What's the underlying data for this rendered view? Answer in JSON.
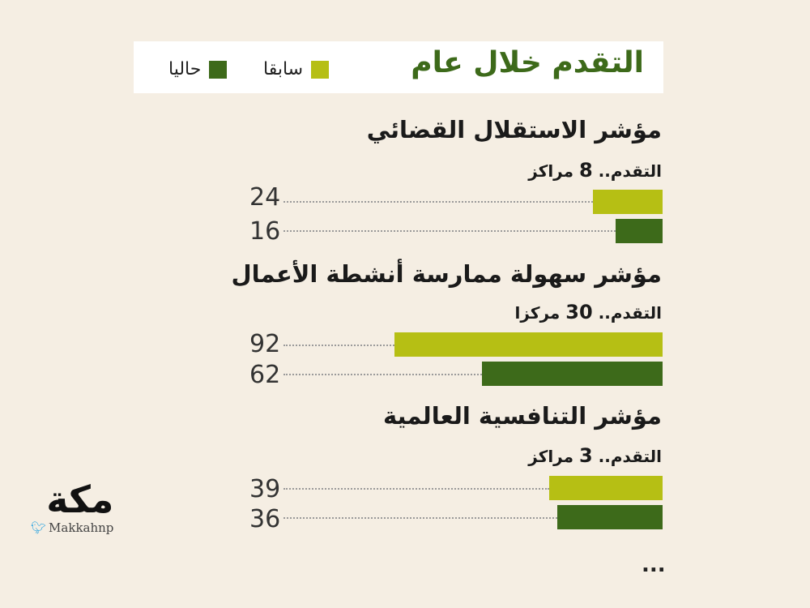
{
  "header": {
    "title": "التقدم خلال عام",
    "legend": [
      {
        "label": "سابقا",
        "color": "#b6bf14"
      },
      {
        "label": "حاليا",
        "color": "#3d6a1a"
      }
    ]
  },
  "chart_data": [
    {
      "type": "bar",
      "title": "مؤشر الاستقلال القضائي",
      "subtitle_prefix": "التقدم..",
      "subtitle_number": "8",
      "subtitle_suffix": "مراكز",
      "series": [
        {
          "name": "سابقا",
          "value": 24,
          "label": "24",
          "color": "#b6bf14"
        },
        {
          "name": "حاليا",
          "value": 16,
          "label": "16",
          "color": "#3d6a1a"
        }
      ]
    },
    {
      "type": "bar",
      "title": "مؤشر سهولة ممارسة أنشطة الأعمال",
      "subtitle_prefix": "التقدم..",
      "subtitle_number": "30",
      "subtitle_suffix": "مركزا",
      "series": [
        {
          "name": "سابقا",
          "value": 92,
          "label": "92",
          "color": "#b6bf14"
        },
        {
          "name": "حاليا",
          "value": 62,
          "label": "62",
          "color": "#3d6a1a"
        }
      ]
    },
    {
      "type": "bar",
      "title": "مؤشر التنافسية العالمية",
      "subtitle_prefix": "التقدم..",
      "subtitle_number": "3",
      "subtitle_suffix": "مراكز",
      "series": [
        {
          "name": "سابقا",
          "value": 39,
          "label": "39",
          "color": "#b6bf14"
        },
        {
          "name": "حاليا",
          "value": 36,
          "label": "36",
          "color": "#3d6a1a"
        }
      ]
    }
  ],
  "footer": {
    "ellipsis": "..."
  },
  "logo": {
    "mark": "مكة",
    "handle": "Makkahnp"
  }
}
